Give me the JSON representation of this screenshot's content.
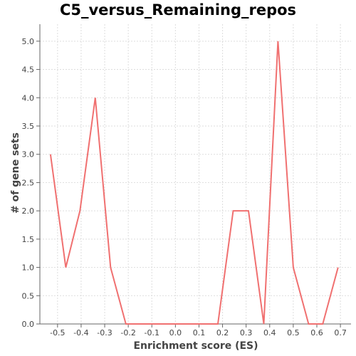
{
  "chart_data": {
    "type": "line",
    "title": "C5_versus_Remaining_repos",
    "xlabel": "Enrichment score (ES)",
    "ylabel": "# of gene sets",
    "xlim": [
      -0.575,
      0.745
    ],
    "ylim": [
      0.0,
      5.3
    ],
    "xticks": [
      -0.5,
      -0.4,
      -0.3,
      -0.2,
      -0.1,
      0.0,
      0.1,
      0.2,
      0.3,
      0.4,
      0.5,
      0.6,
      0.7
    ],
    "xtick_labels": [
      "-0.5",
      "-0.4",
      "-0.3",
      "-0.2",
      "-0.1",
      "0.0",
      "0.1",
      "0.2",
      "0.3",
      "0.4",
      "0.5",
      "0.6",
      "0.7"
    ],
    "yticks": [
      0.0,
      0.5,
      1.0,
      1.5,
      2.0,
      2.5,
      3.0,
      3.5,
      4.0,
      4.5,
      5.0
    ],
    "ytick_labels": [
      "0.0",
      "0.5",
      "1.0",
      "1.5",
      "2.0",
      "2.5",
      "3.0",
      "3.5",
      "4.0",
      "4.5",
      "5.0"
    ],
    "grid": true,
    "series": [
      {
        "color": "#f07070",
        "x": [
          -0.53,
          -0.465,
          -0.405,
          -0.34,
          -0.275,
          -0.21,
          -0.145,
          -0.08,
          -0.015,
          0.05,
          0.115,
          0.18,
          0.245,
          0.31,
          0.375,
          0.435,
          0.5,
          0.565,
          0.625,
          0.69
        ],
        "y": [
          3,
          1,
          2,
          4,
          1,
          0,
          0,
          0,
          0,
          0,
          0,
          0,
          2,
          2,
          0,
          5,
          1,
          0,
          0,
          1
        ]
      }
    ]
  }
}
